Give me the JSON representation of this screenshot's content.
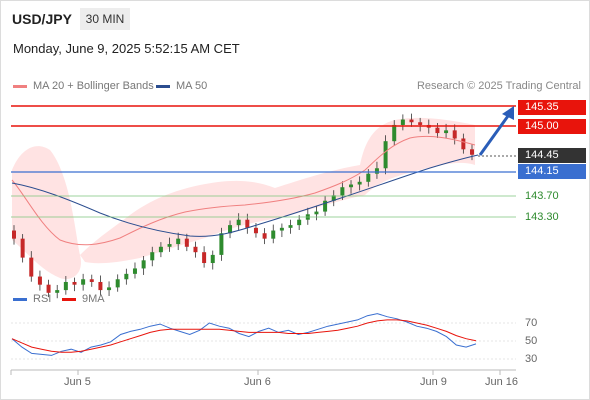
{
  "header": {
    "symbol": "USD/JPY",
    "timeframe": "30 MIN",
    "datetime": "Monday, June 9, 2025 5:52:15 AM CET"
  },
  "legend": {
    "ma20_label": "MA 20 + Bollinger Bands",
    "ma50_label": "MA 50",
    "credit": "Research © 2025 Trading Central"
  },
  "colors": {
    "ma20": "#f08080",
    "ma50": "#2b4d8f",
    "band": "#ffd9d9",
    "resistance": "#e8140c",
    "pivot": "#3a6fd0",
    "support": "#5cb85c",
    "current": "#333333",
    "rsi": "#3a6fd0",
    "rsi_ma": "#e8140c"
  },
  "levels": {
    "r2": "145.35",
    "r1": "145.00",
    "current": "144.45",
    "pivot": "144.15",
    "s1": "143.70",
    "s2": "143.30"
  },
  "rsi_panel": {
    "rsi_label": "RSI",
    "ma_label": "9MA",
    "ticks": [
      "70",
      "50",
      "30"
    ]
  },
  "x_axis": {
    "ticks": [
      "Jun 5",
      "Jun 6",
      "Jun 9",
      "Jun 16"
    ]
  },
  "chart_data": {
    "type": "candlestick",
    "ylim": [
      141.6,
      145.6
    ],
    "close_series": [
      142.9,
      142.55,
      142.2,
      142.05,
      141.9,
      141.95,
      142.1,
      142.05,
      142.15,
      142.1,
      141.95,
      142.0,
      142.15,
      142.25,
      142.35,
      142.5,
      142.65,
      142.75,
      142.8,
      142.9,
      142.75,
      142.65,
      142.45,
      142.6,
      143.0,
      143.15,
      143.25,
      143.1,
      143.0,
      142.9,
      143.05,
      143.1,
      143.15,
      143.25,
      143.35,
      143.4,
      143.6,
      143.7,
      143.85,
      143.9,
      143.95,
      144.1,
      144.2,
      144.7,
      145.0,
      145.1,
      145.05,
      145.0,
      144.95,
      144.85,
      144.9,
      144.75,
      144.55,
      144.45
    ],
    "rsi": [
      48,
      40,
      34,
      33,
      32,
      36,
      38,
      35,
      40,
      42,
      45,
      52,
      55,
      57,
      60,
      62,
      58,
      55,
      52,
      56,
      63,
      60,
      58,
      53,
      50,
      55,
      58,
      54,
      56,
      52,
      54,
      57,
      60,
      62,
      64,
      66,
      70,
      72,
      69,
      67,
      64,
      60,
      58,
      55,
      50,
      42,
      40,
      43
    ],
    "rsi_ma": [
      48,
      44,
      40,
      38,
      36,
      35,
      35,
      36,
      38,
      40,
      42,
      45,
      48,
      51,
      54,
      56,
      57,
      57,
      57,
      57,
      57,
      57,
      56,
      55,
      54,
      54,
      54,
      54,
      53,
      53,
      53,
      54,
      55,
      56,
      58,
      60,
      63,
      65,
      66,
      66,
      65,
      63,
      61,
      58,
      55,
      51,
      48,
      46
    ],
    "rsi_ylim": [
      20,
      85
    ]
  }
}
